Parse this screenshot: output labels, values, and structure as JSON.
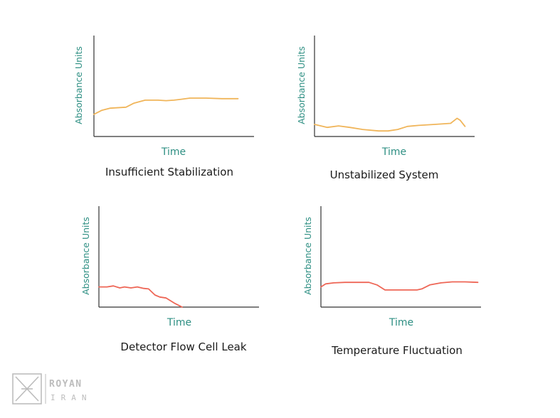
{
  "colors": {
    "orange": "#f0b55a",
    "red": "#ee6656",
    "axis": "#333333",
    "teal": "#2e8f83",
    "logo": "#bdbdbd"
  },
  "chart_data": [
    {
      "type": "line",
      "title": "Insufficient Stabilization",
      "xlabel": "Time",
      "ylabel": "Absorbance Units",
      "grid": false,
      "xlim": [
        0,
        100
      ],
      "ylim": [
        0,
        100
      ],
      "series": [
        {
          "color": "#f0b55a",
          "x": [
            0,
            5,
            10,
            20,
            25,
            32,
            40,
            45,
            50,
            55,
            60,
            70,
            80,
            90
          ],
          "y": [
            22,
            26,
            28,
            29,
            33,
            36,
            36,
            35.5,
            36,
            37,
            38,
            38,
            37.5,
            37.5
          ]
        }
      ]
    },
    {
      "type": "line",
      "title": "Unstabilized System",
      "xlabel": "Time",
      "ylabel": "Absorbance Units",
      "grid": false,
      "xlim": [
        0,
        100
      ],
      "ylim": [
        0,
        100
      ],
      "series": [
        {
          "color": "#f0b55a",
          "x": [
            0,
            8,
            15,
            22,
            30,
            40,
            46,
            52,
            58,
            65,
            75,
            85,
            89,
            91,
            94
          ],
          "y": [
            12,
            9,
            10.5,
            9,
            7,
            5.5,
            5.5,
            7,
            10,
            11,
            12,
            13,
            18,
            16,
            10
          ]
        }
      ]
    },
    {
      "type": "line",
      "title": "Detector Flow Cell Leak",
      "xlabel": "Time",
      "ylabel": "Absorbance Units",
      "grid": false,
      "xlim": [
        0,
        100
      ],
      "ylim": [
        0,
        100
      ],
      "series": [
        {
          "color": "#ee6656",
          "x": [
            0,
            5,
            9,
            13,
            16,
            20,
            24,
            28,
            31,
            35,
            38,
            42,
            47,
            52
          ],
          "y": [
            20,
            20,
            21,
            19,
            20,
            19,
            20,
            18.5,
            18,
            12,
            10,
            9,
            4,
            0
          ]
        }
      ]
    },
    {
      "type": "line",
      "title": "Temperature Fluctuation",
      "xlabel": "Time",
      "ylabel": "Absorbance Units",
      "grid": false,
      "xlim": [
        0,
        100
      ],
      "ylim": [
        0,
        100
      ],
      "series": [
        {
          "color": "#ee6656",
          "x": [
            0,
            3,
            8,
            15,
            30,
            35,
            40,
            60,
            63,
            68,
            75,
            82,
            90,
            98
          ],
          "y": [
            20,
            23,
            24,
            24.5,
            24.5,
            22,
            17,
            17,
            18,
            22,
            24,
            25,
            25,
            24.5
          ]
        }
      ]
    }
  ],
  "logo": {
    "line1": "ROYAN",
    "line2": "IRAN"
  }
}
